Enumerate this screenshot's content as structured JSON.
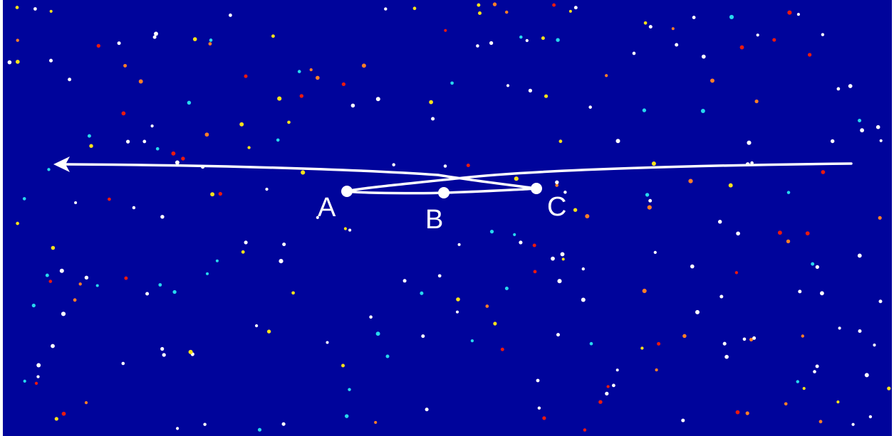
{
  "colors": {
    "sky": "#00049b",
    "path": "#ffffff",
    "stars": [
      "#ffffff",
      "#ffffff",
      "#ffffff",
      "#f7e11b",
      "#ff7f27",
      "#27d8ee",
      "#e81a0f"
    ]
  },
  "points": [
    {
      "id": "A",
      "label": "A"
    },
    {
      "id": "B",
      "label": "B"
    },
    {
      "id": "C",
      "label": "C"
    }
  ]
}
